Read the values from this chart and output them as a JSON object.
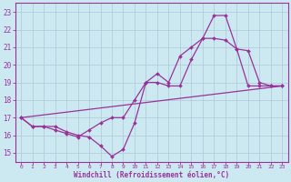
{
  "line1_x": [
    0,
    1,
    2,
    3,
    4,
    5,
    6,
    7,
    8,
    9,
    10,
    11,
    12,
    13,
    14,
    15,
    16,
    17,
    18,
    19,
    20,
    21,
    22,
    23
  ],
  "line1_y": [
    17.0,
    16.5,
    16.5,
    16.5,
    16.2,
    16.0,
    15.9,
    15.4,
    14.8,
    15.2,
    16.7,
    19.0,
    19.0,
    18.8,
    18.8,
    20.3,
    21.5,
    22.8,
    22.8,
    20.9,
    18.8,
    18.8,
    18.8,
    18.8
  ],
  "line2_x": [
    0,
    1,
    2,
    3,
    4,
    5,
    6,
    7,
    8,
    9,
    10,
    11,
    12,
    13,
    14,
    15,
    16,
    17,
    18,
    19,
    20,
    21,
    22,
    23
  ],
  "line2_y": [
    17.0,
    16.5,
    16.5,
    16.3,
    16.1,
    15.9,
    16.3,
    16.7,
    17.0,
    17.0,
    18.0,
    19.0,
    19.5,
    19.0,
    20.5,
    21.0,
    21.5,
    21.5,
    21.4,
    20.9,
    20.8,
    19.0,
    18.8,
    18.8
  ],
  "line3_x": [
    0,
    23
  ],
  "line3_y": [
    17.0,
    18.8
  ],
  "xlim": [
    -0.5,
    23
  ],
  "ylim": [
    14.5,
    23.3
  ],
  "yticks": [
    15,
    16,
    17,
    18,
    19,
    20,
    21,
    22,
    23
  ],
  "xticks": [
    0,
    1,
    2,
    3,
    4,
    5,
    6,
    7,
    8,
    9,
    10,
    11,
    12,
    13,
    14,
    15,
    16,
    17,
    18,
    19,
    20,
    21,
    22,
    23
  ],
  "xlabel": "Windchill (Refroidissement éolien,°C)",
  "bg_color": "#cce8f0",
  "grid_color": "#b0c8d8",
  "line_color": "#993399",
  "tick_color": "#993399"
}
